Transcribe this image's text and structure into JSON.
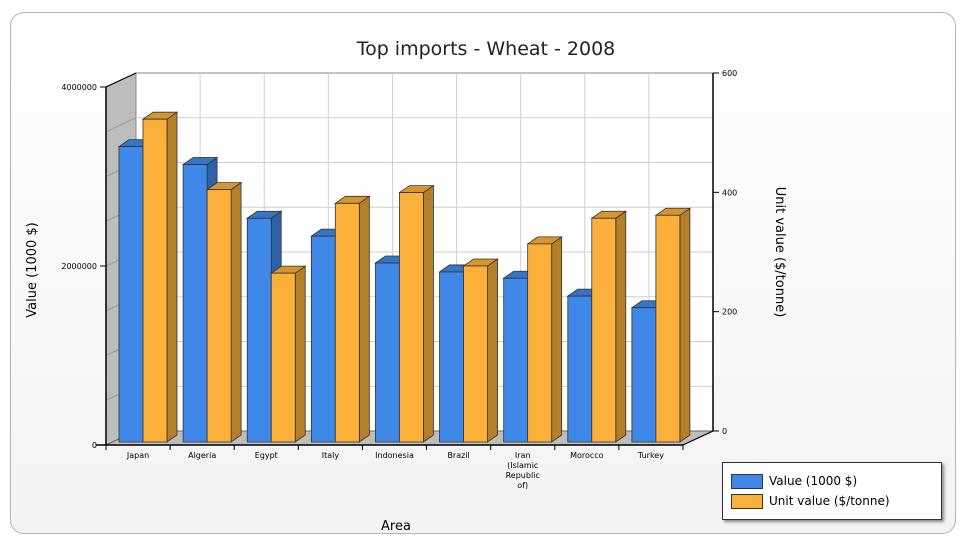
{
  "chart_data": {
    "type": "bar",
    "title": "Top imports - Wheat - 2008",
    "xlabel": "Area",
    "ylabel_left": "Value (1000 $)",
    "ylabel_right": "Unit value ($/tonne)",
    "categories": [
      "Japan",
      "Algeria",
      "Egypt",
      "Italy",
      "Indonesia",
      "Brazil",
      "Iran (Islamic Republic of)",
      "Morocco",
      "Turkey"
    ],
    "category_label_lines": [
      [
        "Japan"
      ],
      [
        "Algeria"
      ],
      [
        "Egypt"
      ],
      [
        "Italy"
      ],
      [
        "Indonesia"
      ],
      [
        "Brazil"
      ],
      [
        "Iran",
        "(Islamic",
        "Republic",
        "of)"
      ],
      [
        "Morocco"
      ],
      [
        "Turkey"
      ]
    ],
    "series": [
      {
        "name": "Value (1000 $)",
        "axis": "left",
        "color": "#4088e8",
        "values": [
          3300000,
          3100000,
          2500000,
          2300000,
          2000000,
          1900000,
          1830000,
          1630000,
          1500000
        ]
      },
      {
        "name": "Unit value ($/tonne)",
        "axis": "right",
        "color": "#fbb03b",
        "values": [
          541,
          423,
          283,
          400,
          418,
          295,
          332,
          375,
          380
        ]
      }
    ],
    "ylim_left": [
      0,
      4000000
    ],
    "yticks_left": [
      "0",
      "2000000",
      "4000000"
    ],
    "ylim_right": [
      0,
      600
    ],
    "yticks_right": [
      "0",
      "200",
      "400",
      "600"
    ],
    "grid": true,
    "legend_position": "bottom-right",
    "style": "3d-clustered-bar"
  }
}
